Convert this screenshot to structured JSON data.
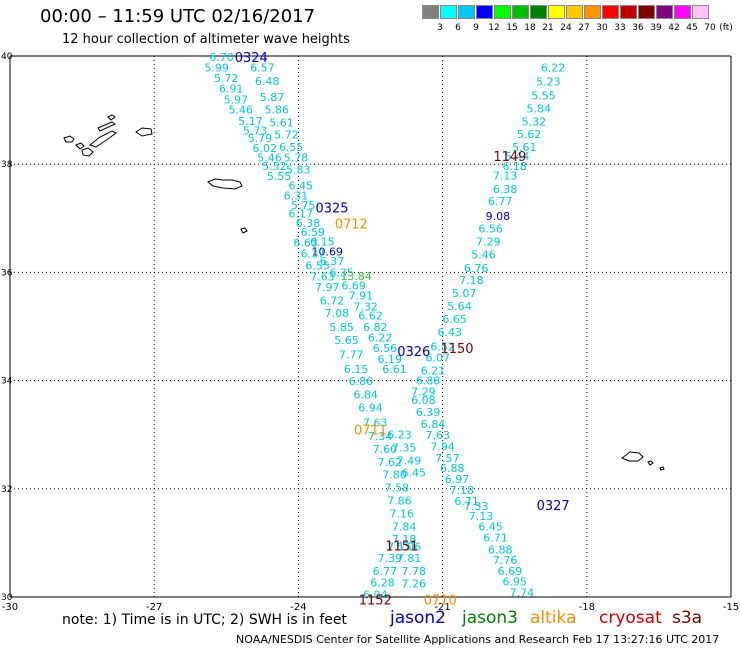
{
  "header": {
    "title": "00:00 – 11:59 UTC 02/16/2017",
    "subtitle": "12 hour collection of altimeter wave heights"
  },
  "colorbar": {
    "unit_label": "(ft)",
    "bins": [
      {
        "label": "3",
        "color": "#808080"
      },
      {
        "label": "6",
        "color": "#00ffff"
      },
      {
        "label": "9",
        "color": "#00c8ff"
      },
      {
        "label": "12",
        "color": "#0000ff"
      },
      {
        "label": "15",
        "color": "#00ff00"
      },
      {
        "label": "18",
        "color": "#00c000"
      },
      {
        "label": "21",
        "color": "#008000"
      },
      {
        "label": "24",
        "color": "#ffff00"
      },
      {
        "label": "27",
        "color": "#ffc800"
      },
      {
        "label": "30",
        "color": "#ff9600"
      },
      {
        "label": "33",
        "color": "#ff0000"
      },
      {
        "label": "36",
        "color": "#c00000"
      },
      {
        "label": "39",
        "color": "#800000"
      },
      {
        "label": "42",
        "color": "#800080"
      },
      {
        "label": "45",
        "color": "#ff00ff"
      },
      {
        "label": "70",
        "color": "#ffc0ff"
      }
    ]
  },
  "axes": {
    "x_ticks": [
      "-30",
      "-27",
      "-24",
      "-21",
      "-18",
      "-15"
    ],
    "x_values": [
      -30,
      -27,
      -24,
      -21,
      -18,
      -15
    ],
    "y_ticks": [
      "40",
      "38",
      "36",
      "34",
      "32",
      "30"
    ],
    "y_values": [
      40,
      38,
      36,
      34,
      32,
      30
    ]
  },
  "time_labels": [
    {
      "text": "0324",
      "lon": -24.98,
      "lat": 39.98,
      "color": "#0000cc"
    },
    {
      "text": "0325",
      "lon": -23.3,
      "lat": 37.2,
      "color": "#0000cc"
    },
    {
      "text": "0712",
      "lon": -22.9,
      "lat": 36.9,
      "color": "#ff8c00"
    },
    {
      "text": "1149",
      "lon": -19.6,
      "lat": 38.15,
      "color": "#800000"
    },
    {
      "text": "1150",
      "lon": -20.7,
      "lat": 34.6,
      "color": "#800000"
    },
    {
      "text": "0326",
      "lon": -21.6,
      "lat": 34.55,
      "color": "#0000cc"
    },
    {
      "text": "0711",
      "lon": -22.5,
      "lat": 33.1,
      "color": "#ff8c00"
    },
    {
      "text": "0327",
      "lon": -18.7,
      "lat": 31.7,
      "color": "#0000cc"
    },
    {
      "text": "1151",
      "lon": -21.85,
      "lat": 30.95,
      "color": "#800000"
    },
    {
      "text": "1152",
      "lon": -22.4,
      "lat": 29.95,
      "color": "#800000"
    },
    {
      "text": "0710",
      "lon": -21.05,
      "lat": 29.95,
      "color": "#ff8c00"
    }
  ],
  "tracks": [
    {
      "name": "track-a",
      "color": "#00c8d8",
      "points": [
        {
          "v": "6.70",
          "lon": -25.6,
          "lat": 39.98
        },
        {
          "v": "6.57",
          "lon": -24.75,
          "lat": 39.79
        },
        {
          "v": "5.99",
          "lon": -25.7,
          "lat": 39.79
        },
        {
          "v": "5.72",
          "lon": -25.5,
          "lat": 39.59
        },
        {
          "v": "6.48",
          "lon": -24.65,
          "lat": 39.54
        },
        {
          "v": "6.91",
          "lon": -25.4,
          "lat": 39.4
        },
        {
          "v": "5.87",
          "lon": -24.55,
          "lat": 39.24
        },
        {
          "v": "5.97",
          "lon": -25.3,
          "lat": 39.2
        },
        {
          "v": "5.46",
          "lon": -25.2,
          "lat": 39.01
        },
        {
          "v": "5.86",
          "lon": -24.45,
          "lat": 39.01
        },
        {
          "v": "5.17",
          "lon": -25.0,
          "lat": 38.8
        },
        {
          "v": "5.61",
          "lon": -24.35,
          "lat": 38.77
        },
        {
          "v": "5.73",
          "lon": -24.9,
          "lat": 38.62
        },
        {
          "v": "5.72",
          "lon": -24.25,
          "lat": 38.55
        },
        {
          "v": "5.79",
          "lon": -24.8,
          "lat": 38.48
        },
        {
          "v": "6.02",
          "lon": -24.7,
          "lat": 38.3
        },
        {
          "v": "6.55",
          "lon": -24.15,
          "lat": 38.32
        },
        {
          "v": "5.46",
          "lon": -24.6,
          "lat": 38.12
        },
        {
          "v": "5.78",
          "lon": -24.05,
          "lat": 38.12
        },
        {
          "v": "5.52",
          "lon": -24.5,
          "lat": 37.97
        },
        {
          "v": "5.83",
          "lon": -24.0,
          "lat": 37.9
        },
        {
          "v": "5.55",
          "lon": -24.4,
          "lat": 37.78
        },
        {
          "v": "6.45",
          "lon": -23.95,
          "lat": 37.61
        },
        {
          "v": "6.31",
          "lon": -24.05,
          "lat": 37.42
        },
        {
          "v": "5.75",
          "lon": -23.9,
          "lat": 37.25
        },
        {
          "v": "6.17",
          "lon": -23.95,
          "lat": 37.09
        },
        {
          "v": "6.38",
          "lon": -23.8,
          "lat": 36.91
        },
        {
          "v": "6.59",
          "lon": -23.7,
          "lat": 36.75
        },
        {
          "v": "6.15",
          "lon": -23.5,
          "lat": 36.57
        },
        {
          "v": "6.63",
          "lon": -23.85,
          "lat": 36.55
        },
        {
          "v": "10.69",
          "lon": -23.4,
          "lat": 36.39
        },
        {
          "v": "6.37",
          "lon": -23.7,
          "lat": 36.35
        },
        {
          "v": "6.37",
          "lon": -23.3,
          "lat": 36.21
        },
        {
          "v": "6.55",
          "lon": -23.6,
          "lat": 36.13
        },
        {
          "v": "6.35",
          "lon": -23.1,
          "lat": 36.0
        },
        {
          "v": "7.63",
          "lon": -23.5,
          "lat": 35.92
        },
        {
          "v": "13.84",
          "lon": -22.8,
          "lat": 35.93
        },
        {
          "v": "7.97",
          "lon": -23.4,
          "lat": 35.73
        },
        {
          "v": "6.69",
          "lon": -22.85,
          "lat": 35.76
        },
        {
          "v": "7.91",
          "lon": -22.7,
          "lat": 35.57
        },
        {
          "v": "6.72",
          "lon": -23.3,
          "lat": 35.48
        },
        {
          "v": "7.32",
          "lon": -22.6,
          "lat": 35.37
        },
        {
          "v": "7.08",
          "lon": -23.2,
          "lat": 35.25
        },
        {
          "v": "6.62",
          "lon": -22.5,
          "lat": 35.2
        },
        {
          "v": "6.82",
          "lon": -22.4,
          "lat": 34.99
        },
        {
          "v": "5.85",
          "lon": -23.1,
          "lat": 34.99
        },
        {
          "v": "6.22",
          "lon": -22.3,
          "lat": 34.8
        },
        {
          "v": "5.65",
          "lon": -23.0,
          "lat": 34.75
        },
        {
          "v": "6.56",
          "lon": -22.2,
          "lat": 34.6
        },
        {
          "v": "7.77",
          "lon": -22.9,
          "lat": 34.48
        },
        {
          "v": "6.19",
          "lon": -22.1,
          "lat": 34.4
        },
        {
          "v": "6.15",
          "lon": -22.8,
          "lat": 34.21
        },
        {
          "v": "6.61",
          "lon": -22.0,
          "lat": 34.21
        },
        {
          "v": "6.86",
          "lon": -22.7,
          "lat": 33.99
        },
        {
          "v": "6.84",
          "lon": -22.6,
          "lat": 33.74
        },
        {
          "v": "6.94",
          "lon": -22.5,
          "lat": 33.5
        },
        {
          "v": "7.63",
          "lon": -22.4,
          "lat": 33.23
        },
        {
          "v": "7.34",
          "lon": -22.3,
          "lat": 32.98
        },
        {
          "v": "7.60",
          "lon": -22.2,
          "lat": 32.74
        },
        {
          "v": "7.62",
          "lon": -22.1,
          "lat": 32.5
        },
        {
          "v": "7.80",
          "lon": -22.0,
          "lat": 32.26
        },
        {
          "v": "7.58",
          "lon": -21.95,
          "lat": 32.02
        },
        {
          "v": "7.86",
          "lon": -21.9,
          "lat": 31.78
        },
        {
          "v": "7.16",
          "lon": -21.85,
          "lat": 31.54
        },
        {
          "v": "7.84",
          "lon": -21.8,
          "lat": 31.3
        },
        {
          "v": "7.18",
          "lon": -21.8,
          "lat": 31.07
        },
        {
          "v": "7.15",
          "lon": -21.9,
          "lat": 30.93
        },
        {
          "v": "7.39",
          "lon": -22.1,
          "lat": 30.72
        },
        {
          "v": "6.77",
          "lon": -22.2,
          "lat": 30.48
        },
        {
          "v": "6.28",
          "lon": -22.25,
          "lat": 30.27
        },
        {
          "v": "6.04",
          "lon": -22.4,
          "lat": 30.05
        }
      ]
    },
    {
      "name": "track-b",
      "color": "#00c8d8",
      "points": [
        {
          "v": "6.22",
          "lon": -18.7,
          "lat": 39.79
        },
        {
          "v": "5.23",
          "lon": -18.8,
          "lat": 39.53
        },
        {
          "v": "5.55",
          "lon": -18.9,
          "lat": 39.27
        },
        {
          "v": "5.84",
          "lon": -19.0,
          "lat": 39.03
        },
        {
          "v": "5.32",
          "lon": -19.1,
          "lat": 38.79
        },
        {
          "v": "5.62",
          "lon": -19.2,
          "lat": 38.56
        },
        {
          "v": "5.61",
          "lon": -19.3,
          "lat": 38.32
        },
        {
          "v": "5.44",
          "lon": -19.45,
          "lat": 38.15
        },
        {
          "v": "6.18",
          "lon": -19.5,
          "lat": 37.97
        },
        {
          "v": "7.13",
          "lon": -19.7,
          "lat": 37.79
        },
        {
          "v": "6.38",
          "lon": -19.7,
          "lat": 37.54
        },
        {
          "v": "6.77",
          "lon": -19.8,
          "lat": 37.32
        },
        {
          "v": "9.08",
          "lon": -19.85,
          "lat": 37.04
        },
        {
          "v": "6.56",
          "lon": -20.0,
          "lat": 36.81
        },
        {
          "v": "7.29",
          "lon": -20.05,
          "lat": 36.57
        },
        {
          "v": "5.46",
          "lon": -20.15,
          "lat": 36.33
        },
        {
          "v": "6.76",
          "lon": -20.3,
          "lat": 36.08
        },
        {
          "v": "7.18",
          "lon": -20.4,
          "lat": 35.86
        },
        {
          "v": "5.07",
          "lon": -20.55,
          "lat": 35.62
        },
        {
          "v": "5.64",
          "lon": -20.65,
          "lat": 35.38
        },
        {
          "v": "6.65",
          "lon": -20.75,
          "lat": 35.14
        },
        {
          "v": "6.43",
          "lon": -20.85,
          "lat": 34.9
        },
        {
          "v": "6.52",
          "lon": -21.0,
          "lat": 34.63
        },
        {
          "v": "6.07",
          "lon": -21.1,
          "lat": 34.43
        },
        {
          "v": "6.21",
          "lon": -21.2,
          "lat": 34.19
        },
        {
          "v": "6.88",
          "lon": -21.3,
          "lat": 34.0
        },
        {
          "v": "7.29",
          "lon": -21.4,
          "lat": 33.8
        },
        {
          "v": "6.08",
          "lon": -21.4,
          "lat": 33.64
        },
        {
          "v": "6.39",
          "lon": -21.3,
          "lat": 33.42
        },
        {
          "v": "6.84",
          "lon": -21.2,
          "lat": 33.2
        },
        {
          "v": "6.23",
          "lon": -21.9,
          "lat": 33.0
        },
        {
          "v": "7.63",
          "lon": -21.1,
          "lat": 32.99
        },
        {
          "v": "7.35",
          "lon": -21.8,
          "lat": 32.76
        },
        {
          "v": "7.94",
          "lon": -21.0,
          "lat": 32.78
        },
        {
          "v": "7.57",
          "lon": -20.9,
          "lat": 32.57
        },
        {
          "v": "7.49",
          "lon": -21.7,
          "lat": 32.52
        },
        {
          "v": "6.88",
          "lon": -20.8,
          "lat": 32.38
        },
        {
          "v": "6.45",
          "lon": -21.6,
          "lat": 32.3
        },
        {
          "v": "6.97",
          "lon": -20.7,
          "lat": 32.18
        },
        {
          "v": "7.18",
          "lon": -20.6,
          "lat": 31.98
        },
        {
          "v": "6.71",
          "lon": -20.5,
          "lat": 31.77
        },
        {
          "v": "7.33",
          "lon": -20.3,
          "lat": 31.68
        },
        {
          "v": "7.13",
          "lon": -20.2,
          "lat": 31.5
        },
        {
          "v": "6.45",
          "lon": -20.0,
          "lat": 31.3
        },
        {
          "v": "6.71",
          "lon": -19.9,
          "lat": 31.1
        },
        {
          "v": "6.88",
          "lon": -19.8,
          "lat": 30.88
        },
        {
          "v": "7.76",
          "lon": -19.7,
          "lat": 30.68
        },
        {
          "v": "6.69",
          "lon": -19.6,
          "lat": 30.48
        },
        {
          "v": "6.95",
          "lon": -19.5,
          "lat": 30.29
        },
        {
          "v": "7.74",
          "lon": -19.35,
          "lat": 30.08
        },
        {
          "v": "5.06",
          "lon": -21.7,
          "lat": 30.93
        },
        {
          "v": "7.81",
          "lon": -21.7,
          "lat": 30.72
        },
        {
          "v": "7.78",
          "lon": -21.6,
          "lat": 30.48
        },
        {
          "v": "7.26",
          "lon": -21.6,
          "lat": 30.25
        }
      ]
    }
  ],
  "footer": {
    "note": "note: 1) Time is in UTC; 2) SWH is in feet",
    "satellites": [
      {
        "name": "jason2",
        "color": "#0000cc"
      },
      {
        "name": "jason3",
        "color": "#008000"
      },
      {
        "name": "altika",
        "color": "#ff8c00"
      },
      {
        "name": "cryosat",
        "color": "#cc0000"
      },
      {
        "name": "s3a",
        "color": "#800000"
      }
    ],
    "credit": "NOAA/NESDIS Center for Satellite Applications and Research   Feb 17 13:27:16 UTC 2017"
  }
}
